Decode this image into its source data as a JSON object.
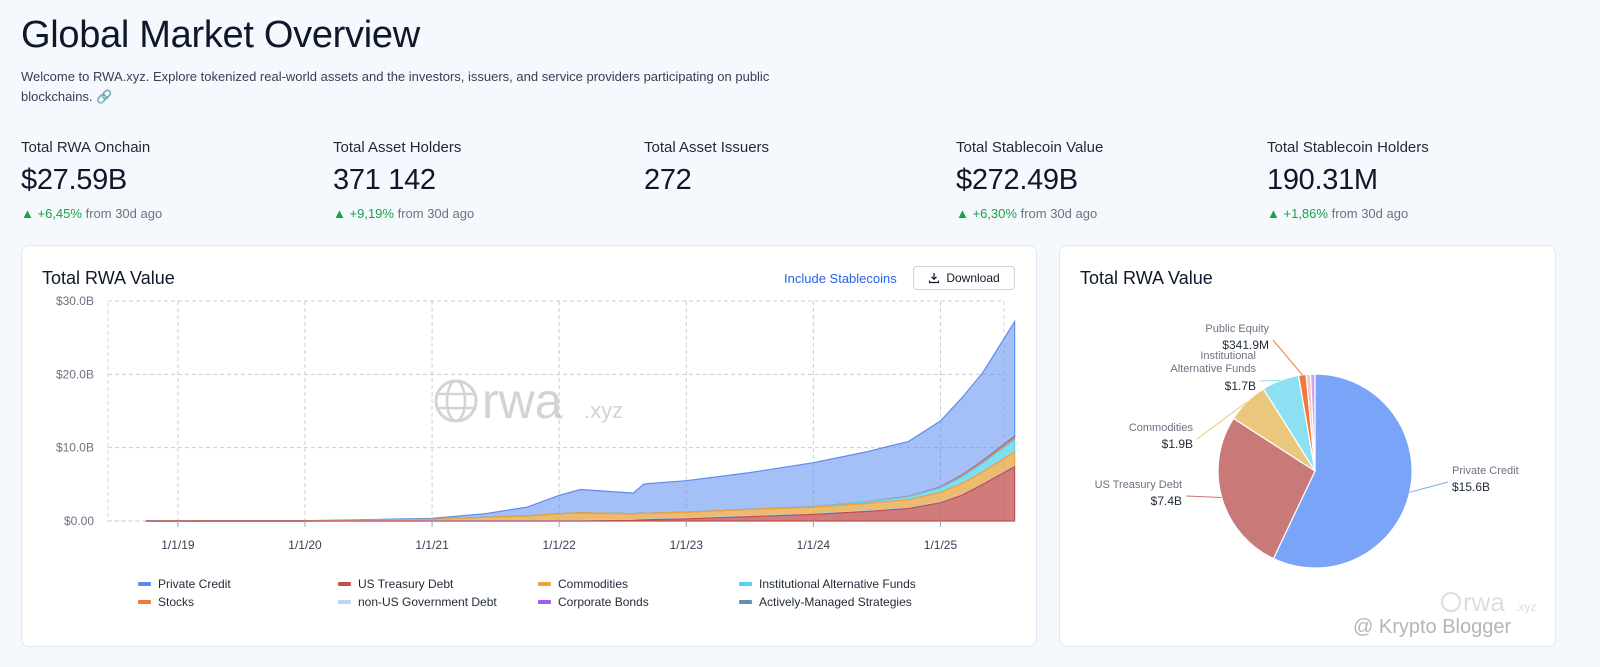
{
  "header": {
    "title": "Global Market Overview",
    "intro": "Welcome to RWA.xyz. Explore tokenized real-world assets and the investors, issuers, and service providers participating on public blockchains. 🔗"
  },
  "stats": [
    {
      "label": "Total RWA Onchain",
      "value": "$27.59B",
      "change": "+6,45%",
      "suffix": "from 30d ago"
    },
    {
      "label": "Total Asset Holders",
      "value": "371 142",
      "change": "+9,19%",
      "suffix": "from 30d ago"
    },
    {
      "label": "Total Asset Issuers",
      "value": "272",
      "change": "",
      "suffix": ""
    },
    {
      "label": "Total Stablecoin Value",
      "value": "$272.49B",
      "change": "+6,30%",
      "suffix": "from 30d ago"
    },
    {
      "label": "Total Stablecoin Holders",
      "value": "190.31M",
      "change": "+1,86%",
      "suffix": "from 30d ago"
    }
  ],
  "area_card": {
    "title": "Total RWA Value",
    "include_link": "Include Stablecoins",
    "download_label": "Download",
    "watermark": "rwa",
    "watermark_suffix": ".xyz"
  },
  "pie_card": {
    "title": "Total RWA Value",
    "watermark": "rwa",
    "watermark_suffix": ".xyz"
  },
  "footer_watermark": "@ Krypto Blogger",
  "colors": {
    "private_credit": "#5b8def",
    "us_treasury": "#c0504d",
    "commodities": "#e8a33d",
    "inst_alt_funds": "#5ad1ee",
    "stocks": "#f07a3c",
    "non_us_gov": "#b9d4f5",
    "corporate_bonds": "#a45cf0",
    "active_strategies": "#5b8fb8",
    "positive": "#16a34a",
    "link": "#2563eb"
  },
  "chart_data": [
    {
      "type": "area",
      "title": "Total RWA Value",
      "stacked": true,
      "y_unit": "USD",
      "ylim": [
        0,
        30
      ],
      "yticks": [
        "$0.00",
        "$10.0B",
        "$20.0B",
        "$30.0B"
      ],
      "xticks": [
        "1/1/19",
        "1/1/20",
        "1/1/21",
        "1/1/22",
        "1/1/23",
        "1/1/24",
        "1/1/25"
      ],
      "grid": true,
      "legend_position": "bottom",
      "x": [
        "2018-10",
        "2019-01",
        "2020-01",
        "2021-01",
        "2021-06",
        "2021-10",
        "2022-01",
        "2022-03",
        "2022-08",
        "2022-09",
        "2023-01",
        "2023-07",
        "2024-01",
        "2024-06",
        "2024-10",
        "2025-01",
        "2025-03",
        "2025-05",
        "2025-08"
      ],
      "series": [
        {
          "name": "Private Credit",
          "color": "#5b8def",
          "values": [
            0.02,
            0.03,
            0.04,
            0.1,
            0.5,
            1.2,
            2.5,
            3.2,
            2.8,
            4.0,
            4.3,
            5.0,
            6.0,
            6.8,
            7.5,
            9.0,
            10.5,
            12.0,
            15.6
          ]
        },
        {
          "name": "US Treasury Debt",
          "color": "#c0504d",
          "values": [
            0,
            0,
            0,
            0,
            0,
            0,
            0,
            0,
            0.1,
            0.15,
            0.3,
            0.6,
            0.9,
            1.3,
            1.7,
            2.5,
            3.5,
            5.0,
            7.4
          ]
        },
        {
          "name": "Commodities",
          "color": "#e8a33d",
          "values": [
            0,
            0,
            0,
            0.2,
            0.4,
            0.6,
            0.9,
            1.0,
            0.8,
            0.8,
            0.8,
            0.9,
            0.9,
            1.0,
            1.1,
            1.3,
            1.5,
            1.6,
            1.9
          ]
        },
        {
          "name": "Institutional Alternative Funds",
          "color": "#5ad1ee",
          "values": [
            0,
            0,
            0,
            0,
            0,
            0,
            0,
            0,
            0,
            0,
            0,
            0,
            0.05,
            0.2,
            0.4,
            0.6,
            0.9,
            1.2,
            1.7
          ]
        },
        {
          "name": "Stocks",
          "color": "#f07a3c",
          "values": [
            0,
            0,
            0,
            0,
            0,
            0,
            0,
            0,
            0,
            0,
            0,
            0,
            0,
            0.02,
            0.05,
            0.1,
            0.15,
            0.2,
            0.3
          ]
        },
        {
          "name": "non-US Government Debt",
          "color": "#b9d4f5",
          "values": [
            0,
            0,
            0,
            0.05,
            0.1,
            0.1,
            0.1,
            0.1,
            0.1,
            0.1,
            0.1,
            0.1,
            0.1,
            0.1,
            0.1,
            0.1,
            0.1,
            0.1,
            0.1
          ]
        },
        {
          "name": "Corporate Bonds",
          "color": "#a45cf0",
          "values": [
            0,
            0,
            0,
            0,
            0,
            0,
            0,
            0,
            0,
            0,
            0,
            0,
            0,
            0,
            0.01,
            0.03,
            0.05,
            0.07,
            0.1
          ]
        },
        {
          "name": "Actively-Managed Strategies",
          "color": "#5b8fb8",
          "values": [
            0,
            0,
            0,
            0,
            0,
            0,
            0,
            0,
            0,
            0,
            0,
            0,
            0,
            0,
            0,
            0.02,
            0.04,
            0.06,
            0.08
          ]
        }
      ]
    },
    {
      "type": "pie",
      "title": "Total RWA Value",
      "slices": [
        {
          "name": "Private Credit",
          "value": 15.6,
          "label": "$15.6B",
          "color": "#7aa4f7",
          "shown": true
        },
        {
          "name": "US Treasury Debt",
          "value": 7.4,
          "label": "$7.4B",
          "color": "#c97a78",
          "shown": true
        },
        {
          "name": "Commodities",
          "value": 1.9,
          "label": "$1.9B",
          "color": "#e9c77c",
          "shown": true
        },
        {
          "name": "Institutional Alternative Funds",
          "value": 1.7,
          "label": "$1.7B",
          "color": "#8ddff2",
          "shown": true
        },
        {
          "name": "Public Equity",
          "value": 0.3419,
          "label": "$341.9M",
          "color": "#f07a3c",
          "shown": true
        },
        {
          "name": "Other",
          "value": 0.2,
          "label": "",
          "color": "#f4c6c4",
          "shown": false
        },
        {
          "name": "Other 2",
          "value": 0.2,
          "label": "",
          "color": "#c9a6f5",
          "shown": false
        }
      ]
    }
  ]
}
